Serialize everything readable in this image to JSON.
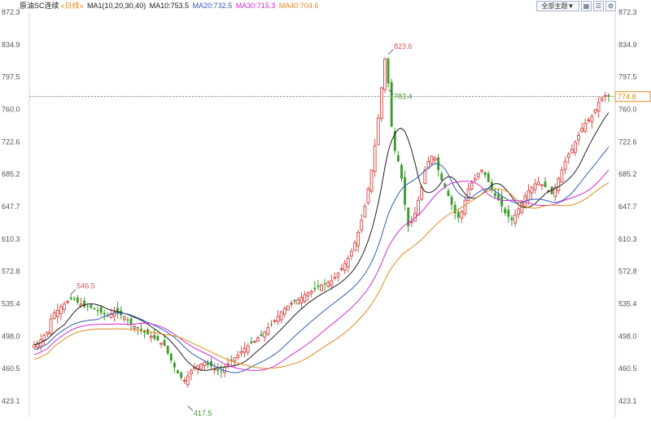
{
  "header": {
    "title": "原油SC连续",
    "period": "«日线»",
    "ma_params": "MA1(10,20,30,40)",
    "ma10": "MA10:753.5",
    "ma20": "MA20:732.5",
    "ma30": "MA30:715.3",
    "ma40": "MA40:704.6",
    "period_button": "全部主题▼",
    "tool_icons": [
      "grid-icon",
      "list-icon",
      "settings-icon"
    ]
  },
  "colors": {
    "up": "#d9534f",
    "down": "#3c9a2f",
    "ma10": "#222222",
    "ma20": "#2e5fb0",
    "ma30": "#d22ad6",
    "ma40": "#e08a1e",
    "ref_dashed": "#5aa6e6",
    "last_price": "#e08a1e"
  },
  "chart_data": {
    "type": "candlestick",
    "title": "原油SC连续",
    "y_axis_ticks": [
      "872.3",
      "834.9",
      "797.5",
      "760.0",
      "722.6",
      "685.2",
      "647.7",
      "610.3",
      "572.8",
      "535.4",
      "498.0",
      "460.5",
      "423.1"
    ],
    "ylim": [
      423.1,
      872.3
    ],
    "ref_line": 775.0,
    "last_price_label": "774.8",
    "annotations": [
      {
        "label": "546.5",
        "value": 546.5
      },
      {
        "label": "417.5",
        "value": 417.5
      },
      {
        "label": "823.6",
        "value": 823.6
      },
      {
        "label": "783.4",
        "value": 783.4
      }
    ],
    "candles_close": [
      488,
      490,
      494,
      499,
      503,
      518,
      525,
      528,
      532,
      535,
      538,
      541,
      540,
      537,
      535,
      532,
      533,
      531,
      529,
      527,
      525,
      523,
      522,
      524,
      526,
      525,
      522,
      520,
      516,
      512,
      509,
      507,
      505,
      502,
      500,
      498,
      495,
      493,
      490,
      487,
      478,
      470,
      462,
      455,
      450,
      447,
      452,
      458,
      462,
      464,
      466,
      468,
      465,
      463,
      460,
      458,
      457,
      462,
      466,
      470,
      473,
      476,
      480,
      484,
      487,
      490,
      492,
      496,
      498,
      503,
      508,
      512,
      516,
      521,
      526,
      530,
      533,
      536,
      538,
      540,
      543,
      546,
      548,
      550,
      552,
      555,
      557,
      558,
      560,
      562,
      566,
      571,
      576,
      582,
      588,
      596,
      606,
      618,
      632,
      648,
      668,
      690,
      718,
      750,
      785,
      818,
      790,
      740,
      712,
      700,
      680,
      650,
      625,
      630,
      640,
      655,
      670,
      690,
      700,
      706,
      704,
      690,
      678,
      670,
      660,
      650,
      640,
      635,
      642,
      655,
      668,
      675,
      680,
      686,
      690,
      684,
      676,
      668,
      660,
      655,
      648,
      640,
      636,
      632,
      638,
      645,
      652,
      660,
      666,
      670,
      674,
      676,
      673,
      670,
      666,
      662,
      670,
      680,
      690,
      700,
      708,
      714,
      722,
      730,
      738,
      744,
      748,
      752,
      760,
      768,
      773,
      776,
      774.8
    ],
    "ma10_label": "MA10:753.5",
    "ma20_label": "MA20:732.5",
    "ma30_label": "MA30:715.3",
    "ma40_label": "MA40:704.6"
  }
}
